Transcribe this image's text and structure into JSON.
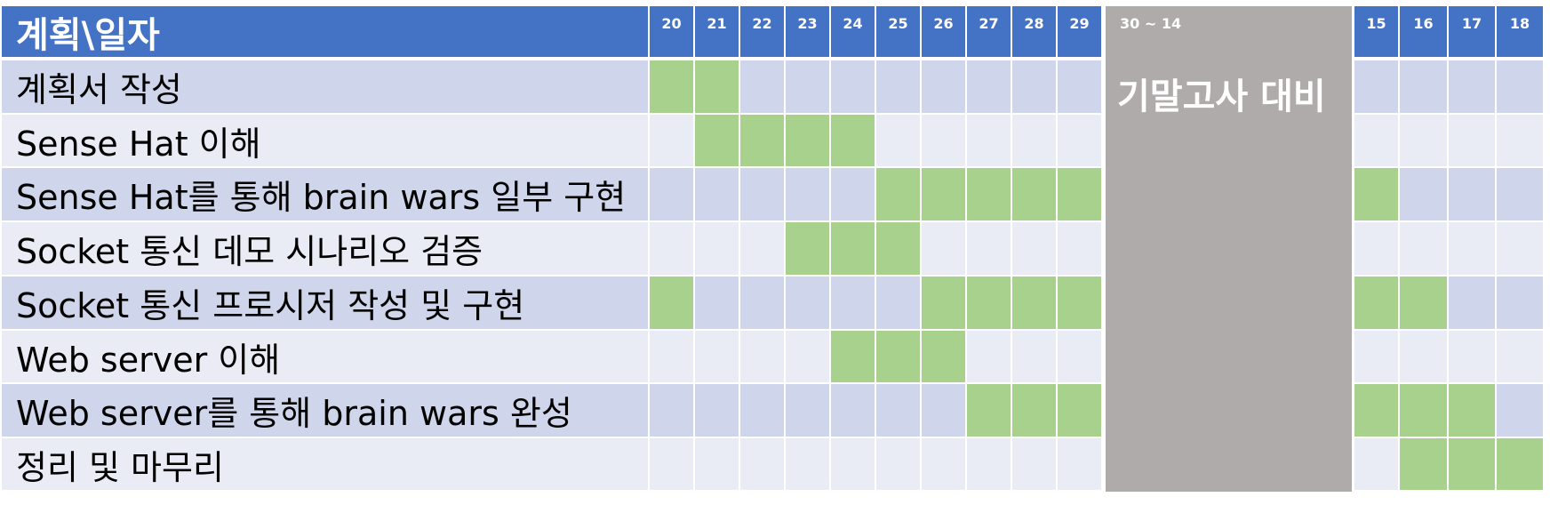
{
  "header": {
    "title": "계획\\일자",
    "days_before": [
      "20",
      "21",
      "22",
      "23",
      "24",
      "25",
      "26",
      "27",
      "28",
      "29"
    ],
    "gap_label": "30 ~ 14",
    "days_after": [
      "15",
      "16",
      "17",
      "18"
    ]
  },
  "exam_block_label": "기말고사 대비",
  "colors": {
    "header": "#4472C4",
    "row_odd": "#CFD5EA",
    "row_even": "#E9EBF5",
    "scheduled": "#A9D18E",
    "exam_block": "#AFABAB"
  },
  "tasks": [
    {
      "label": "계획서 작성",
      "before": [
        1,
        1,
        0,
        0,
        0,
        0,
        0,
        0,
        0,
        0
      ],
      "after": [
        0,
        0,
        0,
        0
      ]
    },
    {
      "label": "Sense Hat 이해",
      "before": [
        0,
        1,
        1,
        1,
        1,
        0,
        0,
        0,
        0,
        0
      ],
      "after": [
        0,
        0,
        0,
        0
      ]
    },
    {
      "label": "Sense Hat를 통해 brain wars 일부 구현",
      "before": [
        0,
        0,
        0,
        0,
        0,
        1,
        1,
        1,
        1,
        1
      ],
      "after": [
        1,
        0,
        0,
        0
      ]
    },
    {
      "label": "Socket 통신 데모 시나리오 검증",
      "before": [
        0,
        0,
        0,
        1,
        1,
        1,
        0,
        0,
        0,
        0
      ],
      "after": [
        0,
        0,
        0,
        0
      ]
    },
    {
      "label": "Socket 통신 프로시저 작성 및 구현",
      "before": [
        1,
        0,
        0,
        0,
        0,
        0,
        1,
        1,
        1,
        1
      ],
      "after": [
        1,
        1,
        0,
        0
      ]
    },
    {
      "label": "Web server 이해",
      "before": [
        0,
        0,
        0,
        0,
        1,
        1,
        1,
        0,
        0,
        0
      ],
      "after": [
        0,
        0,
        0,
        0
      ]
    },
    {
      "label": "Web server를 통해 brain wars 완성",
      "before": [
        0,
        0,
        0,
        0,
        0,
        0,
        0,
        1,
        1,
        1
      ],
      "after": [
        1,
        1,
        1,
        0
      ]
    },
    {
      "label": "정리 및 마무리",
      "before": [
        0,
        0,
        0,
        0,
        0,
        0,
        0,
        0,
        0,
        0
      ],
      "after": [
        0,
        1,
        1,
        1
      ]
    }
  ]
}
